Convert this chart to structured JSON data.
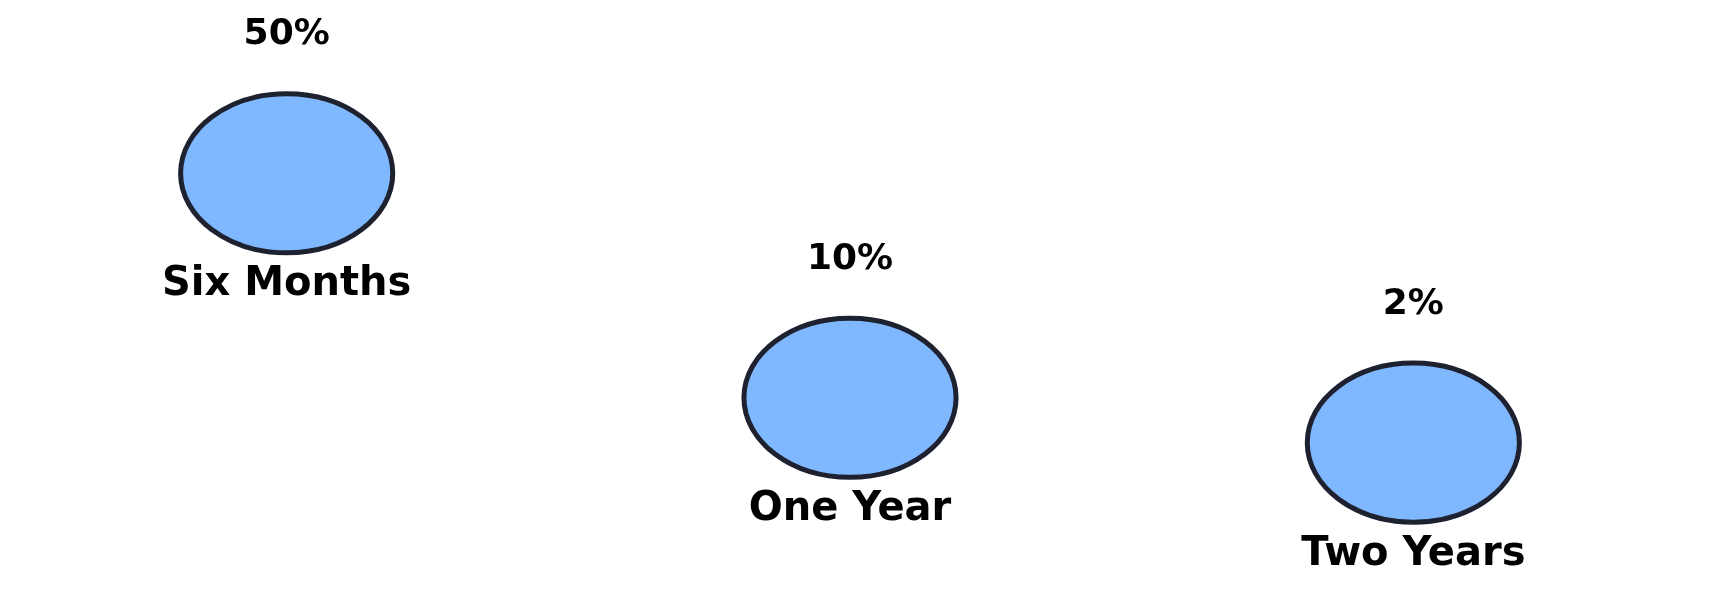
{
  "chart_data": {
    "type": "other",
    "categories": [
      "Six Months",
      "One Year",
      "Two Years"
    ],
    "values": [
      50,
      10,
      2
    ],
    "value_labels": [
      "50%",
      "10%",
      "2%"
    ],
    "color": "#80b8ff"
  }
}
